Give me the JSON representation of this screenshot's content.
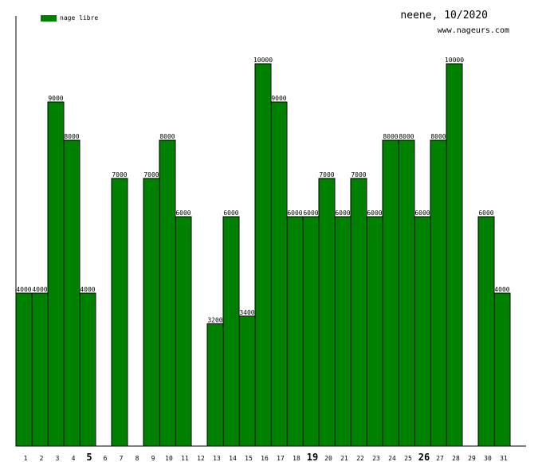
{
  "header": {
    "title": "neene, 10/2020",
    "site": "www.nageurs.com"
  },
  "legend": {
    "label": "nage libre",
    "color": "#008000"
  },
  "colors": {
    "bar": "#008000",
    "bar_stroke": "#000000",
    "axis": "#000000",
    "background": "#ffffff"
  },
  "chart_data": {
    "type": "bar",
    "categories": [
      "1",
      "2",
      "3",
      "4",
      "5",
      "6",
      "7",
      "8",
      "9",
      "10",
      "11",
      "12",
      "13",
      "14",
      "15",
      "16",
      "17",
      "18",
      "19",
      "20",
      "21",
      "22",
      "23",
      "24",
      "25",
      "26",
      "27",
      "28",
      "29",
      "30",
      "31"
    ],
    "bold_categories": [
      "5",
      "19",
      "26"
    ],
    "series": [
      {
        "name": "nage libre",
        "values": [
          4000,
          4000,
          9000,
          8000,
          4000,
          0,
          7000,
          0,
          7000,
          8000,
          6000,
          0,
          3200,
          6000,
          3400,
          10000,
          9000,
          6000,
          6000,
          7000,
          6000,
          7000,
          6000,
          8000,
          8000,
          6000,
          8000,
          10000,
          0,
          6000,
          4000
        ]
      }
    ],
    "ylim": [
      0,
      10000
    ],
    "legend_position": "top-left",
    "grid": false
  }
}
